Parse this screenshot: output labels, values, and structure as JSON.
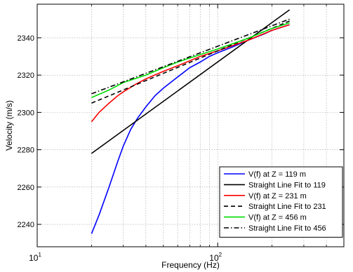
{
  "chart_data": {
    "type": "line",
    "xlabel": "Frequency (Hz)",
    "ylabel": "Velocity (m/s)",
    "x_scale": "log",
    "xlim": [
      10,
      500
    ],
    "ylim": [
      2228,
      2358
    ],
    "grid": true,
    "legend_position": "bottom-right",
    "x_ticks": [
      {
        "value": 10,
        "base": "10",
        "exp": "1"
      },
      {
        "value": 100,
        "base": "10",
        "exp": "2"
      }
    ],
    "y_ticks": [
      2240,
      2260,
      2280,
      2300,
      2320,
      2340
    ],
    "series": [
      {
        "name": "V(f) at Z = 119 m",
        "color": "#0000ff",
        "dash": "solid",
        "x": [
          20,
          22,
          25,
          28,
          30,
          33,
          36,
          40,
          45,
          50,
          60,
          70,
          80,
          90,
          100,
          120,
          150,
          180,
          200,
          250
        ],
        "y": [
          2235,
          2245,
          2260,
          2274,
          2282,
          2291,
          2297,
          2303,
          2309,
          2313,
          2319,
          2324,
          2327,
          2330,
          2332,
          2335,
          2339,
          2342,
          2344,
          2347
        ]
      },
      {
        "name": "Straight Line Fit to 119",
        "color": "#000000",
        "dash": "solid",
        "x": [
          20,
          250
        ],
        "y": [
          2278,
          2355
        ]
      },
      {
        "name": "V(f) at Z = 231 m",
        "color": "#ff0000",
        "dash": "solid",
        "x": [
          20,
          22,
          25,
          28,
          30,
          35,
          40,
          50,
          60,
          80,
          100,
          150,
          200,
          250
        ],
        "y": [
          2295,
          2300,
          2305,
          2309,
          2311,
          2315,
          2318,
          2322,
          2325,
          2330,
          2333,
          2339,
          2344,
          2347
        ]
      },
      {
        "name": "Straight Line Fit to 231",
        "color": "#000000",
        "dash": "dashed",
        "x": [
          20,
          250
        ],
        "y": [
          2305,
          2349
        ]
      },
      {
        "name": "V(f) at Z = 456 m",
        "color": "#00dd00",
        "dash": "solid",
        "x": [
          20,
          25,
          30,
          40,
          50,
          60,
          80,
          100,
          150,
          200,
          250
        ],
        "y": [
          2308,
          2312,
          2316,
          2320,
          2324,
          2327,
          2331,
          2334,
          2340,
          2345,
          2348
        ]
      },
      {
        "name": "Straight Line Fit to 456",
        "color": "#000000",
        "dash": "dashdot",
        "x": [
          20,
          250
        ],
        "y": [
          2310,
          2350
        ]
      }
    ]
  }
}
